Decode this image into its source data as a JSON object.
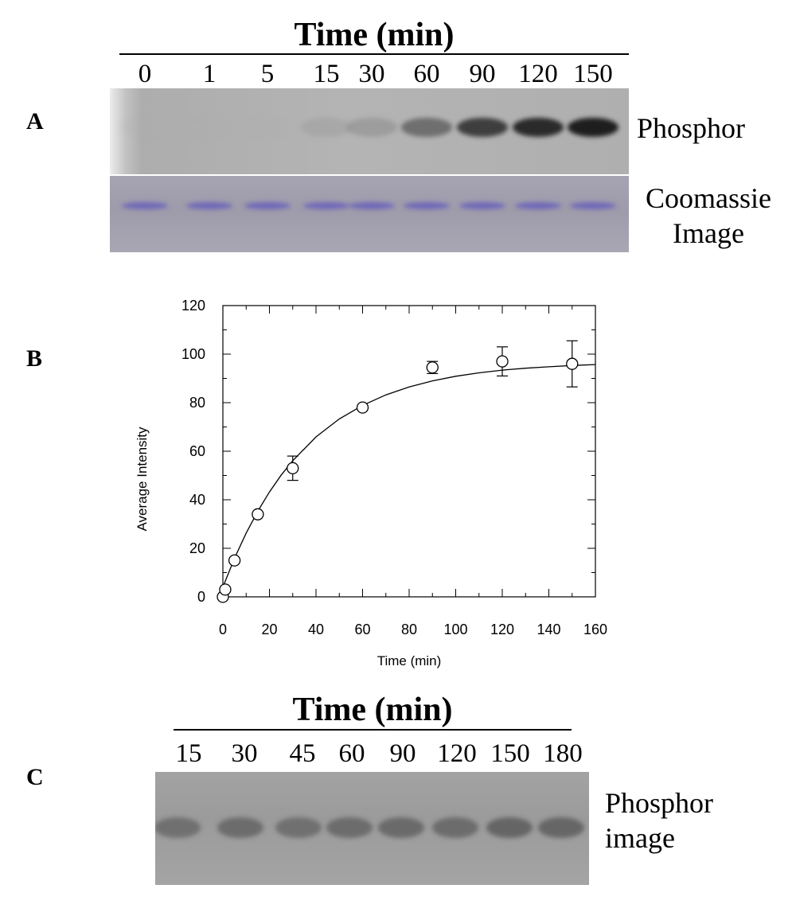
{
  "panel_a": {
    "letter": "A",
    "title": "Time (min)",
    "lanes": [
      "0",
      "1",
      "5",
      "15",
      "30",
      "60",
      "90",
      "120",
      "150"
    ],
    "band_intensity": [
      0.0,
      0.0,
      0.02,
      0.18,
      0.28,
      0.55,
      0.78,
      0.92,
      1.0
    ],
    "phosphor_label": "Phosphor",
    "coomassie_label_line1": "Coomassie",
    "coomassie_label_line2": "Image"
  },
  "panel_b": {
    "letter": "B"
  },
  "chart_data": {
    "type": "scatter",
    "xlabel": "Time (min)",
    "ylabel": "Average Intensity",
    "xlim": [
      0,
      160
    ],
    "ylim": [
      0,
      120
    ],
    "xticks": [
      0,
      20,
      40,
      60,
      80,
      100,
      120,
      140,
      160
    ],
    "yticks": [
      0,
      20,
      40,
      60,
      80,
      100,
      120
    ],
    "grid": false,
    "series": [
      {
        "marker": "open-circle",
        "x": [
          0,
          1,
          5,
          15,
          30,
          60,
          90,
          120,
          150
        ],
        "y": [
          0,
          3,
          15,
          34,
          53,
          78,
          94.5,
          97,
          96
        ],
        "error": [
          0,
          0,
          0,
          0,
          5,
          0,
          2.5,
          6,
          9.5
        ]
      }
    ],
    "fit_curve": {
      "model": "exponential rise to max",
      "x": [
        0,
        5,
        10,
        15,
        20,
        25,
        30,
        40,
        50,
        60,
        70,
        80,
        90,
        100,
        110,
        120,
        130,
        140,
        150,
        160
      ],
      "y": [
        4,
        15.9,
        26.3,
        35.3,
        43.2,
        50.1,
        56.1,
        65.9,
        73.3,
        78.9,
        83.2,
        86.5,
        89.0,
        90.9,
        92.3,
        93.4,
        94.2,
        94.8,
        95.3,
        95.7
      ]
    }
  },
  "panel_c": {
    "letter": "C",
    "title": "Time (min)",
    "lanes": [
      "15",
      "30",
      "45",
      "60",
      "90",
      "120",
      "150",
      "180"
    ],
    "band_intensity": [
      0.55,
      0.6,
      0.55,
      0.6,
      0.62,
      0.6,
      0.7,
      0.68
    ],
    "label_line1": "Phosphor",
    "label_line2": "image"
  }
}
